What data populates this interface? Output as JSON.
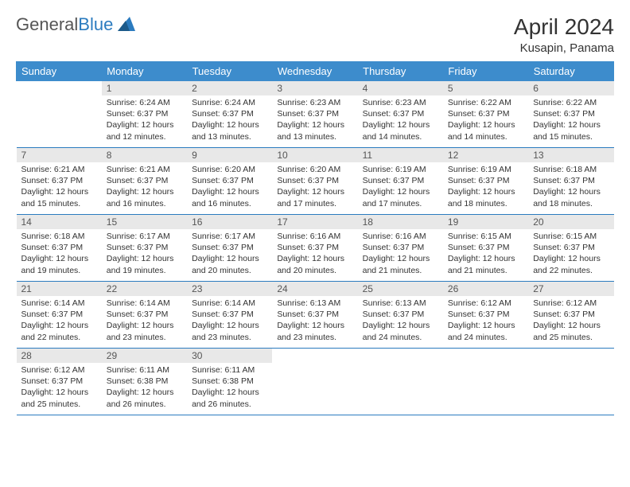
{
  "logo": {
    "gray": "General",
    "blue": "Blue"
  },
  "title": "April 2024",
  "location": "Kusapin, Panama",
  "weekdays": [
    "Sunday",
    "Monday",
    "Tuesday",
    "Wednesday",
    "Thursday",
    "Friday",
    "Saturday"
  ],
  "colors": {
    "header_bg": "#3d8ccc",
    "header_text": "#ffffff",
    "daynum_bg": "#e8e8e8",
    "border": "#2b7bbf",
    "logo_blue": "#2b7bbf",
    "text": "#333333"
  },
  "weeks": [
    [
      {
        "n": "",
        "lines": []
      },
      {
        "n": "1",
        "lines": [
          "Sunrise: 6:24 AM",
          "Sunset: 6:37 PM",
          "Daylight: 12 hours",
          "and 12 minutes."
        ]
      },
      {
        "n": "2",
        "lines": [
          "Sunrise: 6:24 AM",
          "Sunset: 6:37 PM",
          "Daylight: 12 hours",
          "and 13 minutes."
        ]
      },
      {
        "n": "3",
        "lines": [
          "Sunrise: 6:23 AM",
          "Sunset: 6:37 PM",
          "Daylight: 12 hours",
          "and 13 minutes."
        ]
      },
      {
        "n": "4",
        "lines": [
          "Sunrise: 6:23 AM",
          "Sunset: 6:37 PM",
          "Daylight: 12 hours",
          "and 14 minutes."
        ]
      },
      {
        "n": "5",
        "lines": [
          "Sunrise: 6:22 AM",
          "Sunset: 6:37 PM",
          "Daylight: 12 hours",
          "and 14 minutes."
        ]
      },
      {
        "n": "6",
        "lines": [
          "Sunrise: 6:22 AM",
          "Sunset: 6:37 PM",
          "Daylight: 12 hours",
          "and 15 minutes."
        ]
      }
    ],
    [
      {
        "n": "7",
        "lines": [
          "Sunrise: 6:21 AM",
          "Sunset: 6:37 PM",
          "Daylight: 12 hours",
          "and 15 minutes."
        ]
      },
      {
        "n": "8",
        "lines": [
          "Sunrise: 6:21 AM",
          "Sunset: 6:37 PM",
          "Daylight: 12 hours",
          "and 16 minutes."
        ]
      },
      {
        "n": "9",
        "lines": [
          "Sunrise: 6:20 AM",
          "Sunset: 6:37 PM",
          "Daylight: 12 hours",
          "and 16 minutes."
        ]
      },
      {
        "n": "10",
        "lines": [
          "Sunrise: 6:20 AM",
          "Sunset: 6:37 PM",
          "Daylight: 12 hours",
          "and 17 minutes."
        ]
      },
      {
        "n": "11",
        "lines": [
          "Sunrise: 6:19 AM",
          "Sunset: 6:37 PM",
          "Daylight: 12 hours",
          "and 17 minutes."
        ]
      },
      {
        "n": "12",
        "lines": [
          "Sunrise: 6:19 AM",
          "Sunset: 6:37 PM",
          "Daylight: 12 hours",
          "and 18 minutes."
        ]
      },
      {
        "n": "13",
        "lines": [
          "Sunrise: 6:18 AM",
          "Sunset: 6:37 PM",
          "Daylight: 12 hours",
          "and 18 minutes."
        ]
      }
    ],
    [
      {
        "n": "14",
        "lines": [
          "Sunrise: 6:18 AM",
          "Sunset: 6:37 PM",
          "Daylight: 12 hours",
          "and 19 minutes."
        ]
      },
      {
        "n": "15",
        "lines": [
          "Sunrise: 6:17 AM",
          "Sunset: 6:37 PM",
          "Daylight: 12 hours",
          "and 19 minutes."
        ]
      },
      {
        "n": "16",
        "lines": [
          "Sunrise: 6:17 AM",
          "Sunset: 6:37 PM",
          "Daylight: 12 hours",
          "and 20 minutes."
        ]
      },
      {
        "n": "17",
        "lines": [
          "Sunrise: 6:16 AM",
          "Sunset: 6:37 PM",
          "Daylight: 12 hours",
          "and 20 minutes."
        ]
      },
      {
        "n": "18",
        "lines": [
          "Sunrise: 6:16 AM",
          "Sunset: 6:37 PM",
          "Daylight: 12 hours",
          "and 21 minutes."
        ]
      },
      {
        "n": "19",
        "lines": [
          "Sunrise: 6:15 AM",
          "Sunset: 6:37 PM",
          "Daylight: 12 hours",
          "and 21 minutes."
        ]
      },
      {
        "n": "20",
        "lines": [
          "Sunrise: 6:15 AM",
          "Sunset: 6:37 PM",
          "Daylight: 12 hours",
          "and 22 minutes."
        ]
      }
    ],
    [
      {
        "n": "21",
        "lines": [
          "Sunrise: 6:14 AM",
          "Sunset: 6:37 PM",
          "Daylight: 12 hours",
          "and 22 minutes."
        ]
      },
      {
        "n": "22",
        "lines": [
          "Sunrise: 6:14 AM",
          "Sunset: 6:37 PM",
          "Daylight: 12 hours",
          "and 23 minutes."
        ]
      },
      {
        "n": "23",
        "lines": [
          "Sunrise: 6:14 AM",
          "Sunset: 6:37 PM",
          "Daylight: 12 hours",
          "and 23 minutes."
        ]
      },
      {
        "n": "24",
        "lines": [
          "Sunrise: 6:13 AM",
          "Sunset: 6:37 PM",
          "Daylight: 12 hours",
          "and 23 minutes."
        ]
      },
      {
        "n": "25",
        "lines": [
          "Sunrise: 6:13 AM",
          "Sunset: 6:37 PM",
          "Daylight: 12 hours",
          "and 24 minutes."
        ]
      },
      {
        "n": "26",
        "lines": [
          "Sunrise: 6:12 AM",
          "Sunset: 6:37 PM",
          "Daylight: 12 hours",
          "and 24 minutes."
        ]
      },
      {
        "n": "27",
        "lines": [
          "Sunrise: 6:12 AM",
          "Sunset: 6:37 PM",
          "Daylight: 12 hours",
          "and 25 minutes."
        ]
      }
    ],
    [
      {
        "n": "28",
        "lines": [
          "Sunrise: 6:12 AM",
          "Sunset: 6:37 PM",
          "Daylight: 12 hours",
          "and 25 minutes."
        ]
      },
      {
        "n": "29",
        "lines": [
          "Sunrise: 6:11 AM",
          "Sunset: 6:38 PM",
          "Daylight: 12 hours",
          "and 26 minutes."
        ]
      },
      {
        "n": "30",
        "lines": [
          "Sunrise: 6:11 AM",
          "Sunset: 6:38 PM",
          "Daylight: 12 hours",
          "and 26 minutes."
        ]
      },
      {
        "n": "",
        "lines": []
      },
      {
        "n": "",
        "lines": []
      },
      {
        "n": "",
        "lines": []
      },
      {
        "n": "",
        "lines": []
      }
    ]
  ]
}
